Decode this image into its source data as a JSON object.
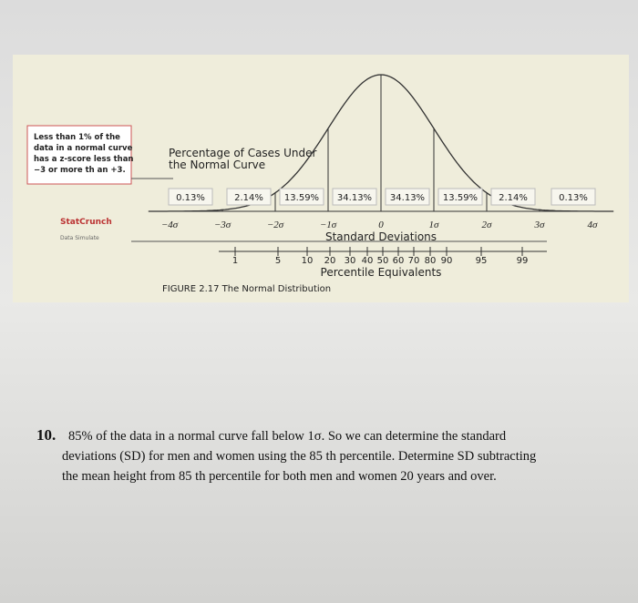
{
  "figure": {
    "callout": [
      "Less than 1% of the",
      "data in a normal curve",
      "has a z-score less than",
      "−3 or more th an +3."
    ],
    "heading": [
      "Percentage of Cases Under",
      "the Normal Curve"
    ],
    "percentages": [
      "0.13%",
      "2.14%",
      "13.59%",
      "34.13%",
      "34.13%",
      "13.59%",
      "2.14%",
      "0.13%"
    ],
    "sigmas": [
      "−4σ",
      "−3σ",
      "−2σ",
      "−1σ",
      "0",
      "1σ",
      "2σ",
      "3σ",
      "4σ"
    ],
    "sigma_title": "Standard Deviations",
    "percentiles": [
      "1",
      "5",
      "10",
      "20",
      "30",
      "40",
      "50",
      "60",
      "70",
      "80",
      "90",
      "95",
      "99"
    ],
    "percentile_title": "Percentile Equivalents",
    "caption": "FIGURE 2.17 The Normal Distribution",
    "logo": "StatCrunch",
    "logo_sub": "Data Simulate"
  },
  "question": {
    "number": "10.",
    "lines": [
      "85% of the data in a normal curve fall below 1σ. So we can determine the standard",
      "deviations (SD) for men and women using the 85 th percentile. Determine SD subtracting",
      "the mean height from 85 th percentile for both men and women 20 years and over."
    ]
  }
}
